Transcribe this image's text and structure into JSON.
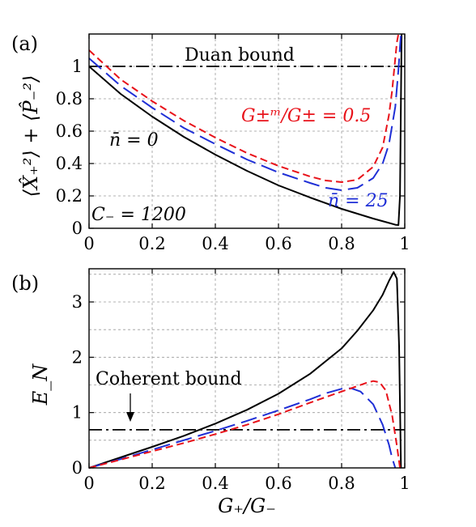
{
  "chart_data": [
    {
      "panel": "(a)",
      "type": "line",
      "xlabel": "",
      "ylabel": "⟨X̂₊²⟩ + ⟨P̂₋²⟩",
      "xlim": [
        0,
        1.0
      ],
      "ylim": [
        0,
        1.2
      ],
      "xticks": [
        "0",
        "0.2",
        "0.4",
        "0.6",
        "0.8",
        "1"
      ],
      "xtick_values": [
        0,
        0.2,
        0.4,
        0.6,
        0.8,
        1.0
      ],
      "yticks": [
        "0",
        "0.2",
        "0.4",
        "0.6",
        "0.8",
        "1"
      ],
      "ytick_values": [
        0,
        0.2,
        0.4,
        0.6,
        0.8,
        1.0
      ],
      "grid": true,
      "reference_line": {
        "label": "Duan bound",
        "y": 1.0,
        "color": "#000000",
        "style": "dashdot"
      },
      "annotations": {
        "nbar0": "n̄ = 0",
        "nbar25": "n̄ = 25",
        "ratio": "G±ᵐ/G± = 0.5",
        "cminus": "C₋ = 1200"
      },
      "series": [
        {
          "color": "#000000",
          "style": "solid",
          "x": [
            0,
            0.1,
            0.2,
            0.3,
            0.4,
            0.5,
            0.6,
            0.7,
            0.8,
            0.9,
            0.95,
            0.97,
            0.98,
            0.985,
            0.99
          ],
          "y": [
            1.0,
            0.83,
            0.69,
            0.565,
            0.455,
            0.355,
            0.265,
            0.19,
            0.12,
            0.06,
            0.033,
            0.022,
            0.02,
            0.2,
            1.22
          ]
        },
        {
          "color": "#1f2fd6",
          "style": "longdash",
          "x": [
            0,
            0.1,
            0.2,
            0.3,
            0.4,
            0.5,
            0.6,
            0.7,
            0.75,
            0.8,
            0.85,
            0.9,
            0.93,
            0.95,
            0.97,
            0.98,
            0.985,
            0.988
          ],
          "y": [
            1.05,
            0.88,
            0.745,
            0.62,
            0.52,
            0.425,
            0.345,
            0.28,
            0.25,
            0.235,
            0.25,
            0.31,
            0.4,
            0.52,
            0.75,
            0.98,
            1.12,
            1.22
          ]
        },
        {
          "color": "#e8121a",
          "style": "dashed",
          "x": [
            0,
            0.1,
            0.2,
            0.3,
            0.4,
            0.5,
            0.6,
            0.7,
            0.75,
            0.8,
            0.85,
            0.9,
            0.93,
            0.95,
            0.96,
            0.97,
            0.975,
            0.98
          ],
          "y": [
            1.1,
            0.92,
            0.785,
            0.665,
            0.56,
            0.465,
            0.385,
            0.32,
            0.295,
            0.285,
            0.3,
            0.38,
            0.5,
            0.7,
            0.85,
            1.05,
            1.15,
            1.22
          ]
        }
      ]
    },
    {
      "panel": "(b)",
      "type": "line",
      "xlabel": "G₊/G₋",
      "ylabel": "E_N",
      "xlim": [
        0,
        1.0
      ],
      "ylim": [
        0,
        3.6
      ],
      "xticks": [
        "0",
        "0.2",
        "0.4",
        "0.6",
        "0.8",
        "1"
      ],
      "xtick_values": [
        0,
        0.2,
        0.4,
        0.6,
        0.8,
        1.0
      ],
      "yticks": [
        "0",
        "1",
        "2",
        "3"
      ],
      "ytick_values": [
        0,
        1,
        2,
        3
      ],
      "grid": true,
      "reference_line": {
        "label": "Coherent bound",
        "y": 0.69,
        "color": "#000000",
        "style": "dashdot"
      },
      "series": [
        {
          "color": "#000000",
          "style": "solid",
          "x": [
            0,
            0.1,
            0.2,
            0.3,
            0.4,
            0.5,
            0.6,
            0.7,
            0.8,
            0.85,
            0.9,
            0.93,
            0.95,
            0.965,
            0.975,
            0.982,
            0.988
          ],
          "y": [
            0,
            0.19,
            0.38,
            0.58,
            0.8,
            1.05,
            1.34,
            1.7,
            2.16,
            2.48,
            2.85,
            3.13,
            3.38,
            3.54,
            3.42,
            2.2,
            0
          ]
        },
        {
          "color": "#1f2fd6",
          "style": "longdash",
          "x": [
            0,
            0.1,
            0.2,
            0.3,
            0.4,
            0.5,
            0.6,
            0.7,
            0.75,
            0.8,
            0.83,
            0.86,
            0.9,
            0.93,
            0.95,
            0.96,
            0.97
          ],
          "y": [
            0,
            0.16,
            0.33,
            0.5,
            0.67,
            0.85,
            1.04,
            1.24,
            1.35,
            1.43,
            1.44,
            1.38,
            1.15,
            0.78,
            0.42,
            0.18,
            0
          ]
        },
        {
          "color": "#e8121a",
          "style": "dashed",
          "x": [
            0,
            0.1,
            0.2,
            0.3,
            0.4,
            0.5,
            0.6,
            0.7,
            0.8,
            0.85,
            0.88,
            0.9,
            0.92,
            0.94,
            0.96,
            0.975,
            0.985
          ],
          "y": [
            0,
            0.15,
            0.3,
            0.45,
            0.61,
            0.78,
            0.97,
            1.18,
            1.38,
            1.48,
            1.54,
            1.57,
            1.55,
            1.4,
            0.95,
            0.4,
            0
          ]
        }
      ]
    }
  ]
}
